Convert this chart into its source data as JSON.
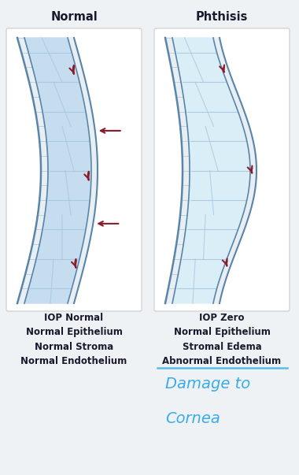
{
  "bg_color": "#eef2f5",
  "panel_bg": "#ffffff",
  "title_left": "Normal",
  "title_right": "Phthisis",
  "title_fontsize": 10.5,
  "title_fontweight": "bold",
  "label_left": "IOP Normal\nNormal Epithelium\nNormal Stroma\nNormal Endothelium",
  "label_right": "IOP Zero\nNormal Epithelium\nStromal Edema\nAbnormal Endothelium",
  "handwriting_line1": "Damage to",
  "handwriting_line2": "Cornea",
  "stroma_color": "#c5ddef",
  "stroma_color_phthisis": "#daeef8",
  "cornea_border": "#5a85a8",
  "epi_color": "#e8eff4",
  "stroma_line_color": "#a8c8dc",
  "arrow_color": "#8b1a2a",
  "text_color": "#1a1a2e",
  "handwriting_color": "#3aace8",
  "underline_color": "#5abce8",
  "panel_edge": "#cccccc"
}
